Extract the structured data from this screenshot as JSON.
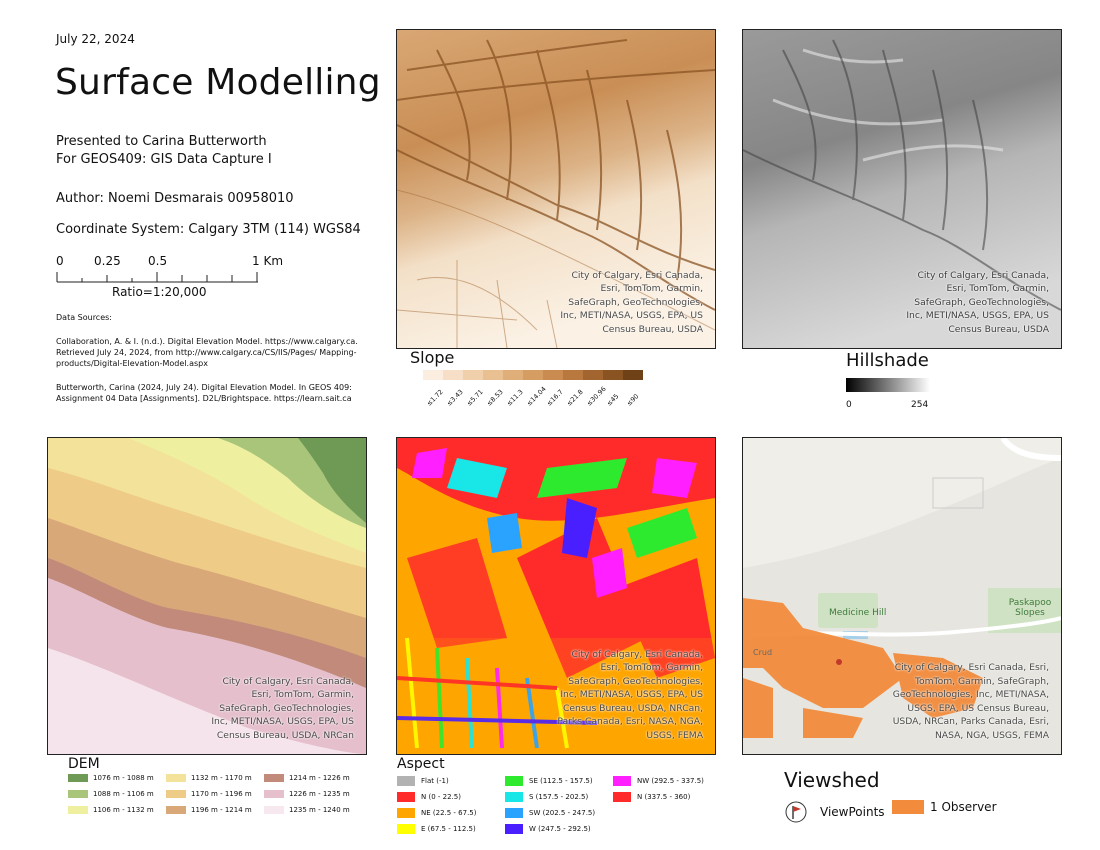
{
  "header": {
    "date": "July 22, 2024",
    "title": "Surface Modelling",
    "presented_to": "Presented to Carina Butterworth",
    "course": "For GEOS409: GIS Data Capture I",
    "author": "Author: Noemi Desmarais 00958010",
    "coordinate_system": "Coordinate System: Calgary 3TM (114) WGS84"
  },
  "scale_bar": {
    "labels": [
      "0",
      "0.25",
      "0.5",
      "1 Km"
    ],
    "ratio": "Ratio=1:20,000"
  },
  "sources": {
    "heading": "Data Sources:",
    "source1": "Collaboration, A. & I. (n.d.). Digital Elevation Model. https://www.calgary.ca. Retrieved July 24, 2024, from http://www.calgary.ca/CS/IIS/Pages/ Mapping-products/Digital-Elevation-Model.aspx",
    "source2": "Butterworth, Carina (2024, July 24). Digital Elevation Model. In GEOS 409: Assignment 04 Data [Assignments]. D2L/Brightspace. https://learn.sait.ca"
  },
  "credits": {
    "short": "City of Calgary, Esri Canada, Esri, TomTom, Garmin, SafeGraph, GeoTechnologies, Inc, METI/NASA, USGS, EPA, US Census Bureau, USDA",
    "dem": "City of Calgary, Esri Canada, Esri, TomTom, Garmin, SafeGraph, GeoTechnologies, Inc, METI/NASA, USGS, EPA, US Census Bureau, USDA, NRCan",
    "long": "City of Calgary, Esri Canada, Esri, TomTom, Garmin, SafeGraph, GeoTechnologies, Inc, METI/NASA, USGS, EPA, US Census Bureau, USDA, NRCan, Parks Canada, Esri, NASA, NGA, USGS, FEMA"
  },
  "slope_legend": {
    "title": "Slope",
    "classes": [
      {
        "label": "≤1.72",
        "color": "#fbeee0"
      },
      {
        "label": "≤3.43",
        "color": "#f6dfc6"
      },
      {
        "label": "≤5.71",
        "color": "#f0d0ab"
      },
      {
        "label": "≤8.53",
        "color": "#e9c092"
      },
      {
        "label": "≤11.3",
        "color": "#e0ae78"
      },
      {
        "label": "≤14.04",
        "color": "#d59d62"
      },
      {
        "label": "≤16.7",
        "color": "#c98b4f"
      },
      {
        "label": "≤21.8",
        "color": "#b8783e"
      },
      {
        "label": "≤30.96",
        "color": "#a3652f"
      },
      {
        "label": "≤45",
        "color": "#8a5322"
      },
      {
        "label": "≤90",
        "color": "#6f4117"
      }
    ]
  },
  "hillshade_legend": {
    "title": "Hillshade",
    "min": "0",
    "max": "254"
  },
  "dem_legend": {
    "title": "DEM",
    "classes": [
      {
        "label": "1076 m - 1088 m",
        "color": "#6e9a55"
      },
      {
        "label": "1088 m - 1106 m",
        "color": "#a9c57a"
      },
      {
        "label": "1106 m - 1132 m",
        "color": "#eef0a0"
      },
      {
        "label": "1132 m - 1170 m",
        "color": "#f3e29a"
      },
      {
        "label": "1170 m - 1196 m",
        "color": "#eecb86"
      },
      {
        "label": "1196 m - 1214 m",
        "color": "#d9a878"
      },
      {
        "label": "1214 m - 1226 m",
        "color": "#c18a7a"
      },
      {
        "label": "1226 m - 1235 m",
        "color": "#e5c0cc"
      },
      {
        "label": "1235 m - 1240 m",
        "color": "#f7e8f0"
      }
    ]
  },
  "aspect_legend": {
    "title": "Aspect",
    "classes": [
      {
        "label": "Flat (-1)",
        "color": "#b2b2b2"
      },
      {
        "label": "N (0 - 22.5)",
        "color": "#ff2a2a"
      },
      {
        "label": "NE (22.5 - 67.5)",
        "color": "#ffa500"
      },
      {
        "label": "E (67.5 - 112.5)",
        "color": "#ffff00"
      },
      {
        "label": "SE (112.5 - 157.5)",
        "color": "#2eea2e"
      },
      {
        "label": "S (157.5 - 202.5)",
        "color": "#19e6e6"
      },
      {
        "label": "SW (202.5 - 247.5)",
        "color": "#2aa3ff"
      },
      {
        "label": "W (247.5 - 292.5)",
        "color": "#4a1fff"
      },
      {
        "label": "NW (292.5 - 337.5)",
        "color": "#ff1fff"
      },
      {
        "label": "N (337.5 - 360)",
        "color": "#ff2a2a"
      }
    ]
  },
  "viewshed_legend": {
    "title": "Viewshed",
    "viewpoints": "ViewPoints",
    "observer": "1 Observer",
    "observer_color": "#f28c3c"
  },
  "basemap": {
    "medicine_hill": "Medicine Hill",
    "paskapoo": "Paskapoo Slopes",
    "road": "Crud"
  }
}
